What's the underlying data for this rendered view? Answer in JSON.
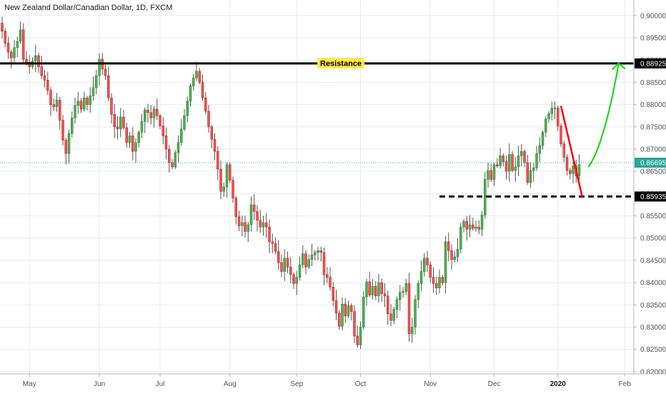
{
  "chart_data": {
    "type": "candlestick",
    "title": "New Zealand Dollar/Canadian Dollar, 1D, FXCM",
    "symbol": "New Zealand Dollar/Canadian Dollar",
    "interval": "1D",
    "source": "FXCM",
    "ylim": [
      0.8195,
      0.9035
    ],
    "y_ticks": [
      "0.90000",
      "0.89500",
      "0.89000",
      "0.88500",
      "0.88000",
      "0.87500",
      "0.87000",
      "0.86500",
      "0.86000",
      "0.85500",
      "0.85000",
      "0.84500",
      "0.84000",
      "0.83500",
      "0.83000",
      "0.82500",
      "0.82000"
    ],
    "x_ticks": [
      {
        "label": "May",
        "index": 9
      },
      {
        "label": "Jun",
        "index": 32
      },
      {
        "label": "Jul",
        "index": 52
      },
      {
        "label": "Aug",
        "index": 75
      },
      {
        "label": "Sep",
        "index": 97
      },
      {
        "label": "Oct",
        "index": 118
      },
      {
        "label": "Nov",
        "index": 141
      },
      {
        "label": "Dec",
        "index": 162
      },
      {
        "label": "2020",
        "index": 183,
        "bold": true
      },
      {
        "label": "Feb",
        "index": 205
      }
    ],
    "close_series": [
      0.8965,
      0.8938,
      0.8918,
      0.8905,
      0.8928,
      0.8942,
      0.8968,
      0.8902,
      0.8895,
      0.8885,
      0.8898,
      0.891,
      0.8885,
      0.8865,
      0.8855,
      0.8832,
      0.88,
      0.8795,
      0.881,
      0.8765,
      0.872,
      0.869,
      0.8735,
      0.877,
      0.8798,
      0.8808,
      0.879,
      0.8815,
      0.88,
      0.882,
      0.8838,
      0.8865,
      0.8902,
      0.888,
      0.8865,
      0.8815,
      0.8778,
      0.875,
      0.8745,
      0.8772,
      0.8748,
      0.8715,
      0.873,
      0.8695,
      0.8715,
      0.8738,
      0.8762,
      0.8788,
      0.8782,
      0.877,
      0.879,
      0.8775,
      0.8752,
      0.873,
      0.87,
      0.867,
      0.866,
      0.8692,
      0.8715,
      0.8745,
      0.8775,
      0.8808,
      0.8842,
      0.886,
      0.8875,
      0.885,
      0.8815,
      0.8785,
      0.875,
      0.8722,
      0.8695,
      0.8655,
      0.8605,
      0.8615,
      0.8665,
      0.863,
      0.859,
      0.8548,
      0.8528,
      0.8535,
      0.8515,
      0.853,
      0.8575,
      0.856,
      0.854,
      0.8525,
      0.8535,
      0.8525,
      0.8492,
      0.8488,
      0.847,
      0.8445,
      0.8425,
      0.8455,
      0.8435,
      0.8418,
      0.8398,
      0.8412,
      0.844,
      0.8465,
      0.8435,
      0.8452,
      0.8462,
      0.8468,
      0.8472,
      0.8468,
      0.8418,
      0.8412,
      0.839,
      0.836,
      0.8332,
      0.8302,
      0.8352,
      0.8325,
      0.8348,
      0.8335,
      0.828,
      0.826,
      0.83,
      0.8368,
      0.8402,
      0.8372,
      0.8392,
      0.837,
      0.84,
      0.8375,
      0.837,
      0.833,
      0.8315,
      0.834,
      0.8362,
      0.8378,
      0.838,
      0.8398,
      0.8285,
      0.83,
      0.8362,
      0.8398,
      0.8425,
      0.8455,
      0.844,
      0.8412,
      0.8398,
      0.8388,
      0.8412,
      0.84,
      0.8492,
      0.8472,
      0.8452,
      0.8458,
      0.8475,
      0.8525,
      0.8538,
      0.852,
      0.853,
      0.8522,
      0.8525,
      0.852,
      0.8552,
      0.8632,
      0.8652,
      0.8632,
      0.8665,
      0.8662,
      0.8685,
      0.8672,
      0.865,
      0.8688,
      0.8652,
      0.866,
      0.8685,
      0.8695,
      0.867,
      0.8625,
      0.8652,
      0.8658,
      0.869,
      0.8708,
      0.8738,
      0.8768,
      0.878,
      0.8792,
      0.8792,
      0.8752,
      0.8712,
      0.8682,
      0.8652,
      0.8645,
      0.8662,
      0.864,
      0.8665
    ],
    "last_price": "0.86695",
    "annotations": [
      {
        "type": "horizontal_line",
        "label": "Resistance",
        "value": 0.88925,
        "price_label": "0.88925",
        "color": "#000000"
      },
      {
        "type": "dashed_line",
        "value": 0.85935,
        "price_label": "0.85935",
        "color": "#000000"
      },
      {
        "type": "trend_line",
        "color": "#ff0000",
        "from": {
          "index": 184,
          "price": 0.8797
        },
        "to": {
          "index": 191,
          "price": 0.8593
        }
      },
      {
        "type": "arrow",
        "color": "#00dd00",
        "from": {
          "index": 193,
          "price": 0.866
        },
        "to": {
          "index": 203,
          "price": 0.8893
        }
      }
    ],
    "colors": {
      "up": "#4caf50",
      "down": "#ef5350",
      "wick": "#555555",
      "grid": "#e8ebf0",
      "last_price": "#26a69a",
      "resistance_badge": "#ffe94d",
      "axis_badge": "#000000"
    },
    "grid": true
  }
}
